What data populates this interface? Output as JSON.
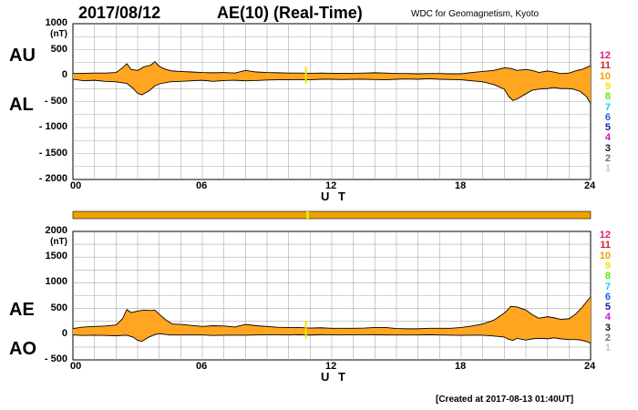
{
  "header": {
    "date": "2017/08/12",
    "title": "AE(10) (Real-Time)",
    "source": "WDC for Geomagnetism, Kyoto"
  },
  "footer": {
    "created": "[Created at 2017-08-13 01:40UT]"
  },
  "level_legend": {
    "items": [
      {
        "label": "12",
        "color": "#e8177a"
      },
      {
        "label": "11",
        "color": "#d81e1e"
      },
      {
        "label": "10",
        "color": "#f0a000"
      },
      {
        "label": "9",
        "color": "#e8e800"
      },
      {
        "label": "8",
        "color": "#60e800"
      },
      {
        "label": "7",
        "color": "#00d8e8"
      },
      {
        "label": "6",
        "color": "#1860e8"
      },
      {
        "label": "5",
        "color": "#1818a8"
      },
      {
        "label": "4",
        "color": "#c818c8"
      },
      {
        "label": "3",
        "color": "#181818"
      },
      {
        "label": "2",
        "color": "#707070"
      },
      {
        "label": "1",
        "color": "#c8c8c8"
      }
    ]
  },
  "colors": {
    "fill": "#ffa520",
    "line": "#000000",
    "grid": "#aaaaaa",
    "marker": "#e8e800"
  },
  "chart_data": [
    {
      "type": "area",
      "panel": "AU/AL",
      "labels_upper": "AU",
      "labels_lower": "AL",
      "unit": "(nT)",
      "xlabel": "U T",
      "xlim": [
        0,
        24
      ],
      "ylim": [
        -2000,
        1000
      ],
      "xticks": [
        "00",
        "06",
        "12",
        "18",
        "24"
      ],
      "yticks": [
        {
          "v": 1000,
          "t": "1000"
        },
        {
          "v": 500,
          "t": "500"
        },
        {
          "v": 0,
          "t": "0"
        },
        {
          "v": -500,
          "t": "- 500"
        },
        {
          "v": -1000,
          "t": "- 1000"
        },
        {
          "v": -1500,
          "t": "- 1500"
        },
        {
          "v": -2000,
          "t": "- 2000"
        }
      ],
      "series": [
        {
          "name": "AU",
          "x": [
            0,
            0.5,
            1,
            1.5,
            2,
            2.3,
            2.5,
            2.7,
            3,
            3.3,
            3.6,
            3.8,
            4,
            4.3,
            4.6,
            5,
            5.5,
            6,
            6.5,
            7,
            7.5,
            8,
            8.5,
            9,
            9.5,
            10,
            10.5,
            11,
            11.5,
            12,
            12.5,
            13,
            13.5,
            14,
            14.5,
            15,
            15.5,
            16,
            16.5,
            17,
            17.5,
            18,
            18.5,
            19,
            19.5,
            20,
            20.3,
            20.6,
            21,
            21.3,
            21.6,
            22,
            22.3,
            22.6,
            23,
            23.3,
            23.6,
            24
          ],
          "y": [
            40,
            45,
            50,
            50,
            60,
            150,
            230,
            120,
            100,
            170,
            200,
            270,
            180,
            120,
            90,
            80,
            70,
            60,
            55,
            60,
            50,
            100,
            70,
            60,
            55,
            50,
            50,
            45,
            50,
            45,
            45,
            45,
            50,
            55,
            50,
            40,
            40,
            35,
            40,
            40,
            35,
            35,
            60,
            80,
            100,
            150,
            140,
            100,
            120,
            100,
            60,
            90,
            70,
            40,
            50,
            90,
            120,
            190
          ]
        },
        {
          "name": "AL",
          "x": [
            0,
            0.5,
            1,
            1.5,
            2,
            2.5,
            2.8,
            3,
            3.2,
            3.5,
            3.8,
            4,
            4.5,
            5,
            5.5,
            6,
            6.5,
            7,
            7.5,
            8,
            8.5,
            9,
            9.5,
            10,
            10.5,
            11,
            11.5,
            12,
            12.5,
            13,
            13.5,
            14,
            14.5,
            15,
            15.5,
            16,
            16.5,
            17,
            17.5,
            18,
            18.5,
            19,
            19.5,
            20,
            20.2,
            20.4,
            20.6,
            21,
            21.3,
            21.6,
            22,
            22.3,
            22.6,
            23,
            23.2,
            23.5,
            23.8,
            24
          ],
          "y": [
            -70,
            -100,
            -90,
            -110,
            -120,
            -150,
            -250,
            -340,
            -370,
            -300,
            -200,
            -160,
            -120,
            -110,
            -100,
            -90,
            -110,
            -95,
            -90,
            -100,
            -95,
            -85,
            -80,
            -80,
            -75,
            -80,
            -70,
            -70,
            -75,
            -70,
            -70,
            -75,
            -80,
            -70,
            -65,
            -70,
            -60,
            -70,
            -75,
            -80,
            -100,
            -120,
            -170,
            -260,
            -400,
            -480,
            -450,
            -350,
            -280,
            -260,
            -250,
            -230,
            -250,
            -250,
            -260,
            -300,
            -400,
            -540
          ]
        }
      ]
    },
    {
      "type": "area",
      "panel": "AE/AO",
      "labels_upper": "AE",
      "labels_lower": "AO",
      "unit": "(nT)",
      "xlabel": "U T",
      "xlim": [
        0,
        24
      ],
      "ylim": [
        -500,
        2000
      ],
      "xticks": [
        "00",
        "06",
        "12",
        "18",
        "24"
      ],
      "yticks": [
        {
          "v": 2000,
          "t": "2000"
        },
        {
          "v": 1500,
          "t": "1500"
        },
        {
          "v": 1000,
          "t": "1000"
        },
        {
          "v": 500,
          "t": "500"
        },
        {
          "v": 0,
          "t": "0"
        },
        {
          "v": -500,
          "t": "- 500"
        }
      ],
      "series": [
        {
          "name": "AE",
          "x": [
            0,
            0.5,
            1,
            1.5,
            2,
            2.3,
            2.5,
            2.7,
            3,
            3.3,
            3.6,
            3.8,
            4,
            4.3,
            4.6,
            5,
            5.5,
            6,
            6.5,
            7,
            7.5,
            8,
            8.5,
            9,
            9.5,
            10,
            10.5,
            11,
            11.5,
            12,
            12.5,
            13,
            13.5,
            14,
            14.5,
            15,
            15.5,
            16,
            16.5,
            17,
            17.5,
            18,
            18.5,
            19,
            19.5,
            20,
            20.3,
            20.6,
            21,
            21.3,
            21.6,
            22,
            22.3,
            22.6,
            23,
            23.3,
            23.6,
            24
          ],
          "y": [
            110,
            140,
            150,
            160,
            180,
            300,
            480,
            420,
            450,
            470,
            460,
            470,
            390,
            280,
            200,
            190,
            170,
            150,
            165,
            160,
            140,
            190,
            165,
            150,
            135,
            130,
            130,
            120,
            125,
            115,
            115,
            115,
            120,
            130,
            130,
            110,
            105,
            105,
            115,
            115,
            115,
            130,
            160,
            200,
            270,
            410,
            540,
            530,
            470,
            380,
            310,
            340,
            320,
            290,
            300,
            390,
            520,
            730
          ]
        },
        {
          "name": "AO",
          "x": [
            0,
            0.5,
            1,
            1.5,
            2,
            2.5,
            2.8,
            3,
            3.2,
            3.5,
            3.8,
            4,
            4.5,
            5,
            5.5,
            6,
            6.5,
            7,
            7.5,
            8,
            8.5,
            9,
            9.5,
            10,
            10.5,
            11,
            11.5,
            12,
            12.5,
            13,
            13.5,
            14,
            14.5,
            15,
            15.5,
            16,
            16.5,
            17,
            17.5,
            18,
            18.5,
            19,
            19.5,
            20,
            20.2,
            20.4,
            20.6,
            21,
            21.3,
            21.6,
            22,
            22.3,
            22.6,
            23,
            23.2,
            23.5,
            23.8,
            24
          ],
          "y": [
            -15,
            -25,
            -20,
            -25,
            -30,
            -20,
            -60,
            -120,
            -140,
            -60,
            -10,
            10,
            -15,
            -15,
            -15,
            -15,
            -25,
            -20,
            -20,
            -20,
            -15,
            -12,
            -12,
            -15,
            -12,
            -17,
            -10,
            -12,
            -15,
            -12,
            -12,
            -10,
            -15,
            -15,
            -15,
            -15,
            -10,
            -15,
            -20,
            -22,
            -20,
            -20,
            -35,
            -55,
            -100,
            -120,
            -80,
            -115,
            -90,
            -80,
            -90,
            -70,
            -90,
            -105,
            -105,
            -110,
            -140,
            -175
          ]
        }
      ]
    }
  ],
  "activity_bar": {
    "color": "#f0a000"
  }
}
